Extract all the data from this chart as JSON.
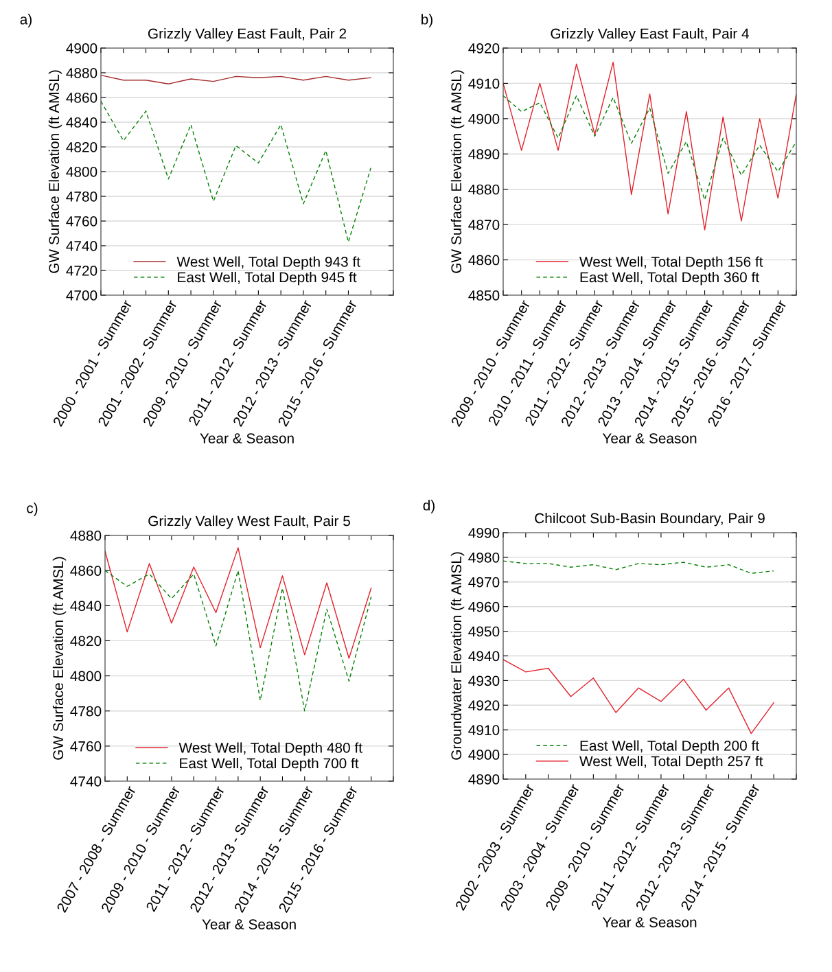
{
  "chart_data": [
    {
      "type": "line",
      "title": "Grizzly Valley East Fault, Pair 2",
      "xlabel": "Year & Season",
      "ylabel": "GW Surface Elevation (ft AMSL)",
      "annotations": [
        "a)"
      ],
      "categories": [
        null,
        "2000 - 2001 - Summer",
        null,
        "2001 - 2002 - Summer",
        null,
        "2009 - 2010 - Summer",
        null,
        "2011 - 2012 - Summer",
        null,
        "2012 - 2013 - Summer",
        null,
        "2015 - 2016 - Summer",
        null,
        null
      ],
      "series": [
        {
          "name": "West Well, Total Depth 943 ft",
          "color": "#a52a2a",
          "line_style": "solid",
          "values": [
            4878,
            4874,
            4874,
            4871,
            4875,
            4873,
            4877,
            4876,
            4877,
            4874,
            4877,
            4874,
            4876,
            null
          ]
        },
        {
          "name": "East Well, Total Depth 945 ft",
          "color": "#008000",
          "line_style": "dashed",
          "values": [
            4857,
            4825,
            4849,
            4794,
            4838,
            4776,
            4821,
            4807,
            4838,
            4774,
            4817,
            4743,
            4803,
            null
          ]
        }
      ],
      "ylim": [
        4700,
        4900
      ],
      "yticks": [
        4700,
        4720,
        4740,
        4760,
        4780,
        4800,
        4820,
        4840,
        4860,
        4880,
        4900
      ],
      "grid": "y",
      "legend": "bottom",
      "marker": "none"
    },
    {
      "type": "line",
      "title": "Grizzly Valley East Fault, Pair 4",
      "xlabel": "Year & Season",
      "ylabel": "GW Surface Elevation (ft AMSL)",
      "annotations": [
        "b)"
      ],
      "categories": [
        null,
        "2009 - 2010 - Summer",
        null,
        "2010 - 2011 - Summer",
        null,
        "2011 - 2012 - Summer",
        null,
        "2012 - 2013 - Summer",
        null,
        "2013 - 2014 - Summer",
        null,
        "2014 - 2015 - Summer",
        null,
        "2015 - 2016 - Summer",
        null,
        "2016 - 2017 - Summer",
        null
      ],
      "series": [
        {
          "name": "West Well, Total Depth 156 ft",
          "color": "#e3202a",
          "line_style": "solid",
          "values": [
            4910,
            4891,
            4910,
            4891,
            4915.5,
            4895.5,
            4916,
            4878.5,
            4907,
            4873,
            4902,
            4868.5,
            4900.5,
            4871,
            4900,
            4877.5,
            4907
          ]
        },
        {
          "name": "East Well, Total Depth 360 ft",
          "color": "#008000",
          "line_style": "dashed",
          "values": [
            4906.5,
            4902,
            4904.5,
            4894.5,
            4906.5,
            4895,
            4906,
            4893,
            4903,
            4884.5,
            4893.5,
            4877,
            4894.5,
            4884,
            4892.5,
            4885,
            4893.5
          ]
        }
      ],
      "ylim": [
        4850,
        4920
      ],
      "yticks": [
        4850,
        4860,
        4870,
        4880,
        4890,
        4900,
        4910,
        4920
      ],
      "grid": "y",
      "legend": "bottom",
      "marker": "none"
    },
    {
      "type": "line",
      "title": "Grizzly Valley West Fault, Pair 5",
      "xlabel": "Year & Season",
      "ylabel": "GW Surface Elevation (ft AMSL)",
      "annotations": [
        "c)"
      ],
      "categories": [
        null,
        "2007 - 2008 - Summer",
        null,
        "2009 - 2010 - Summer",
        null,
        "2011 - 2012 - Summer",
        null,
        "2012 - 2013 - Summer",
        null,
        "2014 - 2015 - Summer",
        null,
        "2015 - 2016 - Summer",
        null,
        null
      ],
      "series": [
        {
          "name": "West Well, Total Depth 480 ft",
          "color": "#e3202a",
          "line_style": "solid",
          "values": [
            4871,
            4825,
            4864,
            4830,
            4862,
            4836,
            4873,
            4816,
            4857,
            4812,
            4853,
            4810,
            4850,
            null
          ]
        },
        {
          "name": "East Well, Total Depth 700 ft",
          "color": "#008000",
          "line_style": "dashed",
          "values": [
            4860,
            4851,
            4858,
            4844,
            4858,
            4817,
            4860,
            4786,
            4850,
            4780,
            4838,
            4797,
            4845,
            null
          ]
        }
      ],
      "ylim": [
        4740,
        4880
      ],
      "yticks": [
        4740,
        4760,
        4780,
        4800,
        4820,
        4840,
        4860,
        4880
      ],
      "grid": "y",
      "legend": "bottom",
      "marker": "none"
    },
    {
      "type": "line",
      "title": "Chilcoot Sub-Basin Boundary, Pair 9",
      "xlabel": "Year & Season",
      "ylabel": "Groundwater Elevation (ft AMSL)",
      "annotations": [
        "d)"
      ],
      "categories": [
        null,
        "2002 - 2003 - Summer",
        null,
        "2003 - 2004 - Summer",
        null,
        "2009 - 2010 - Summer",
        null,
        "2011 - 2012 - Summer",
        null,
        "2012 - 2013 - Summer",
        null,
        "2014 - 2015 - Summer",
        null,
        null
      ],
      "series": [
        {
          "name": "East Well, Total Depth 200 ft",
          "color": "#008000",
          "line_style": "dashed",
          "values": [
            4978.5,
            4977.5,
            4977.5,
            4976,
            4977,
            4975,
            4977.5,
            4977,
            4978,
            4976,
            4977,
            4973.5,
            4974.5,
            null
          ]
        },
        {
          "name": "West Well, Total Depth 257 ft",
          "color": "#e3202a",
          "line_style": "solid",
          "values": [
            4938.5,
            4933.5,
            4935,
            4923.5,
            4931,
            4917,
            4927,
            4921.5,
            4930.5,
            4918,
            4927,
            4908.5,
            4921,
            null
          ]
        }
      ],
      "ylim": [
        4890,
        4990
      ],
      "yticks": [
        4890,
        4900,
        4910,
        4920,
        4930,
        4940,
        4950,
        4960,
        4970,
        4980,
        4990
      ],
      "grid": "y",
      "legend": "bottom",
      "marker": "none"
    }
  ]
}
